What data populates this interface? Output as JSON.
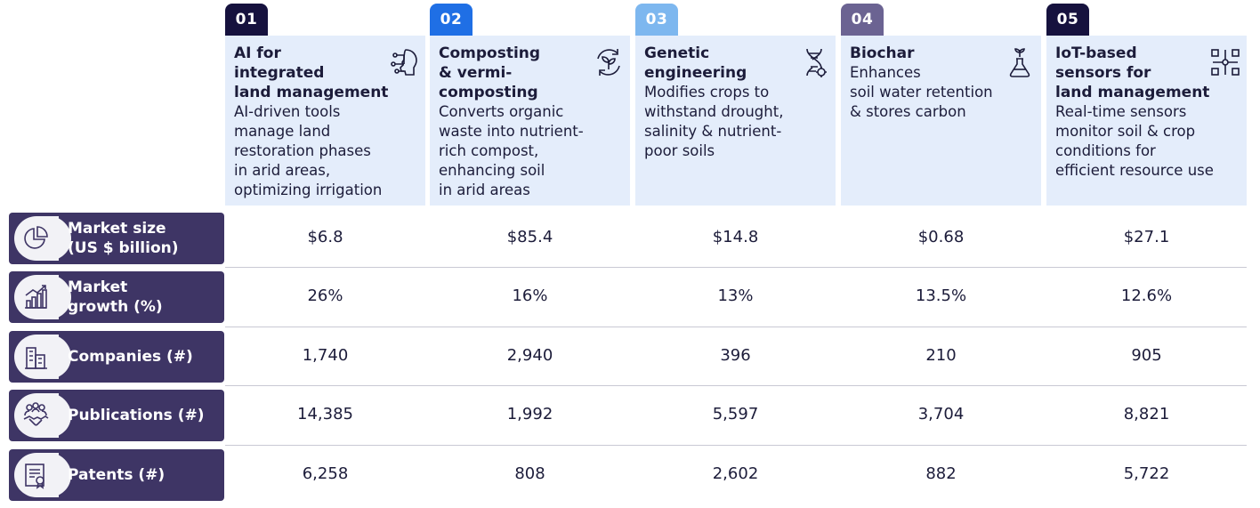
{
  "columns": [
    {
      "num": "01",
      "title": "AI for\nintegrated\nland management",
      "desc": "AI-driven tools\nmanage land\nrestoration phases\nin arid areas,\noptimizing irrigation",
      "icon": "ai-head-icon",
      "badge_color": "#16123e"
    },
    {
      "num": "02",
      "title": "Composting\n& vermi-\ncomposting",
      "desc": "Converts organic\nwaste into nutrient-\nrich compost,\nenhancing soil\nin arid areas",
      "icon": "recycle-plant-icon",
      "badge_color": "#1f6fe5"
    },
    {
      "num": "03",
      "title": "Genetic\nengineering",
      "desc": "Modifies crops to\nwithstand drought,\nsalinity & nutrient-\npoor soils",
      "icon": "dna-icon",
      "badge_color": "#7db7ef"
    },
    {
      "num": "04",
      "title": "Biochar",
      "desc": "Enhances\nsoil water retention\n& stores carbon",
      "icon": "flask-sprout-icon",
      "badge_color": "#6b6392"
    },
    {
      "num": "05",
      "title": "IoT-based\nsensors for\nland management",
      "desc": "Real-time sensors\nmonitor soil & crop\nconditions for\nefficient resource use",
      "icon": "sensor-network-icon",
      "badge_color": "#16123e"
    }
  ],
  "rows": [
    {
      "label": "Market size\n(US $ billion)",
      "icon": "pie-chart-icon",
      "values": [
        "$6.8",
        "$85.4",
        "$14.8",
        "$0.68",
        "$27.1"
      ]
    },
    {
      "label": "Market\ngrowth (%)",
      "icon": "bar-growth-icon",
      "values": [
        "26%",
        "16%",
        "13%",
        "13.5%",
        "12.6%"
      ]
    },
    {
      "label": "Companies (#)",
      "icon": "buildings-icon",
      "values": [
        "1,740",
        "2,940",
        "396",
        "210",
        "905"
      ]
    },
    {
      "label": "Publications (#)",
      "icon": "handshake-people-icon",
      "values": [
        "14,385",
        "1,992",
        "5,597",
        "3,704",
        "8,821"
      ]
    },
    {
      "label": "Patents (#)",
      "icon": "certificate-icon",
      "values": [
        "6,258",
        "808",
        "2,602",
        "882",
        "5,722"
      ]
    }
  ],
  "colors": {
    "header_bg": "#e4edfb",
    "row_label_bg": "#3e3565",
    "text": "#1c1c3a"
  }
}
